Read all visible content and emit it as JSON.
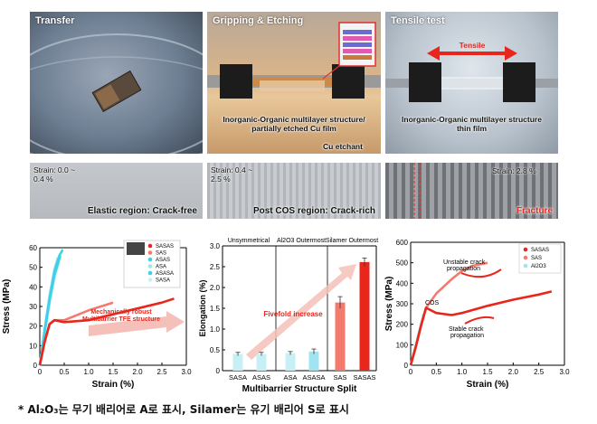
{
  "photos": {
    "transfer": {
      "label": "Transfer"
    },
    "gripping": {
      "label": "Gripping & Etching",
      "caption_line1": "Inorganic-Organic multilayer structure/",
      "caption_line2": "partially etched Cu film",
      "etchant": "Cu etchant"
    },
    "tensile": {
      "label": "Tensile test",
      "arrow_label": "Tensile",
      "caption_line1": "Inorganic-Organic multilayer structure",
      "caption_line2": "thin film"
    }
  },
  "strips": {
    "elastic": {
      "strain_line1": "Strain: 0.0  ~",
      "strain_line2": "0.4 %",
      "region": "Elastic region: Crack-free"
    },
    "post_cos": {
      "strain_line1": "Strain: 0.4  ~",
      "strain_line2": "2.5 %",
      "region": "Post COS region: Crack-rich"
    },
    "fracture": {
      "strain": "Strain: 2.8 %",
      "region": "Fracture"
    }
  },
  "colors": {
    "red": "#e8261c",
    "salmon": "#f47a6e",
    "cyan": "#3fd0e8",
    "light_cyan": "#9fe4f0",
    "pale_cyan": "#c6f0f6"
  },
  "chart_data": [
    {
      "type": "line",
      "title": "",
      "xlabel": "Strain (%)",
      "ylabel": "Stress (MPa)",
      "xlim": [
        0,
        3.0
      ],
      "ylim": [
        0,
        60
      ],
      "xticks": [
        "0",
        "0.5",
        "1.0",
        "1.5",
        "2.0",
        "2.5",
        "3.0"
      ],
      "yticks": [
        "0",
        "10",
        "20",
        "30",
        "40",
        "50",
        "60"
      ],
      "legend": [
        "SASAS",
        "SAS",
        "ASAS",
        "ASA",
        "ASASA",
        "SASA"
      ],
      "annotation_line1": "Mechanically robust",
      "annotation_line2": "Multibarrier TFE structure",
      "series": [
        {
          "name": "SASAS",
          "x": [
            0,
            0.1,
            0.2,
            0.3,
            0.5,
            1.0,
            1.5,
            2.0,
            2.5,
            2.75
          ],
          "y": [
            0,
            12,
            21,
            23,
            22,
            23,
            26,
            29,
            32,
            34
          ]
        },
        {
          "name": "SAS",
          "x": [
            0,
            0.1,
            0.2,
            0.3,
            0.5,
            1.0,
            1.5
          ],
          "y": [
            0,
            12,
            21,
            23,
            23,
            28,
            32
          ]
        },
        {
          "name": "ASAS",
          "x": [
            0,
            0.1,
            0.2,
            0.3,
            0.4,
            0.47
          ],
          "y": [
            0,
            18,
            34,
            48,
            56,
            59
          ]
        },
        {
          "name": "ASA",
          "x": [
            0,
            0.1,
            0.2,
            0.3,
            0.37
          ],
          "y": [
            0,
            19,
            36,
            49,
            55
          ]
        },
        {
          "name": "ASASA",
          "x": [
            0,
            0.1,
            0.2,
            0.3,
            0.42
          ],
          "y": [
            0,
            17,
            33,
            46,
            56
          ]
        },
        {
          "name": "SASA",
          "x": [
            0,
            0.1,
            0.2,
            0.3,
            0.4
          ],
          "y": [
            0,
            16,
            31,
            44,
            53
          ]
        }
      ]
    },
    {
      "type": "bar",
      "title": "",
      "xlabel": "Multibarrier Structure Split",
      "ylabel": "Elongation (%)",
      "ylim": [
        0,
        3.0
      ],
      "yticks": [
        "0",
        "0.5",
        "1.0",
        "1.5",
        "2.0",
        "2.5",
        "3.0"
      ],
      "categories": [
        "SASA",
        "ASAS",
        "ASA",
        "ASASA",
        "SAS",
        "SASAS"
      ],
      "values": [
        0.4,
        0.4,
        0.42,
        0.46,
        1.64,
        2.61
      ],
      "errors": [
        0.04,
        0.04,
        0.04,
        0.06,
        0.14,
        0.1
      ],
      "group_labels": [
        "Unsymmetrical",
        "Al2O3 Outermost",
        "Silamer Outermost"
      ],
      "annotation": "Fivefold increase"
    },
    {
      "type": "line",
      "title": "",
      "xlabel": "Strain (%)",
      "ylabel": "Stress (MPa)",
      "xlim": [
        0,
        3.0
      ],
      "ylim": [
        0,
        600
      ],
      "xticks": [
        "0",
        "0.5",
        "1.0",
        "1.5",
        "2.0",
        "2.5",
        "3.0"
      ],
      "yticks": [
        "0",
        "100",
        "200",
        "300",
        "400",
        "500",
        "600"
      ],
      "legend": [
        "SASAS",
        "SAS",
        "Al2O3"
      ],
      "annotations": {
        "unstable_1": "Unstable crack",
        "unstable_2": "propagation",
        "cos": "COS",
        "stable_1": "Stable crack",
        "stable_2": "propagation"
      },
      "series": [
        {
          "name": "SASAS",
          "x": [
            0,
            0.1,
            0.2,
            0.3,
            0.5,
            0.8,
            1.0,
            1.5,
            2.0,
            2.5,
            2.75
          ],
          "y": [
            0,
            90,
            190,
            280,
            255,
            245,
            255,
            290,
            320,
            345,
            360
          ]
        },
        {
          "name": "SAS",
          "x": [
            0,
            0.1,
            0.2,
            0.3,
            0.5,
            0.8,
            1.0,
            1.2,
            1.5
          ],
          "y": [
            0,
            90,
            190,
            280,
            350,
            420,
            460,
            485,
            500
          ]
        },
        {
          "name": "Al2O3",
          "x": [
            0,
            0.1,
            0.2,
            0.25
          ],
          "y": [
            0,
            100,
            200,
            250
          ]
        }
      ]
    }
  ],
  "footnote": {
    "text": "* Al₂O₃는 무기 배리어로 A로 표시, Silamer는 유기 배리어 S로 표시"
  }
}
